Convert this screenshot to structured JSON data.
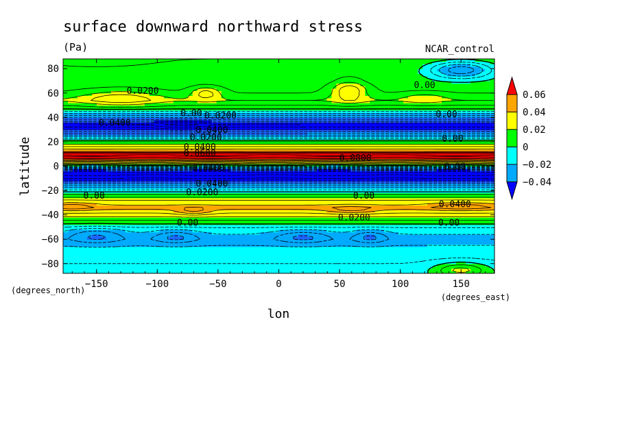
{
  "chart_data": {
    "type": "heatmap",
    "title": "surface downward northward stress",
    "units": "(Pa)",
    "dataset": "NCAR_control",
    "xlabel": "lon",
    "ylabel": "latitude",
    "xunits": "(degrees_east)",
    "yunits": "(degrees_north)",
    "xlim": [
      -177.5,
      177.5
    ],
    "ylim": [
      -88,
      88
    ],
    "x_ticks": [
      -150,
      -100,
      -50,
      0,
      50,
      100,
      150
    ],
    "y_ticks": [
      -80,
      -60,
      -40,
      -20,
      0,
      20,
      40,
      60,
      80
    ],
    "x_tick_labels": [
      "−150",
      "−100",
      "−50",
      "0",
      "50",
      "100",
      "150"
    ],
    "y_tick_labels": [
      "−80",
      "−60",
      "−40",
      "−20",
      "0",
      "20",
      "40",
      "60",
      "80"
    ],
    "colorbar": {
      "labels": [
        "0.06",
        "0.04",
        "0.02",
        "0",
        "−0.02",
        "−0.04"
      ],
      "colors": [
        "#ff0000",
        "#ffa500",
        "#ffff00",
        "#00ff00",
        "#00ffff",
        "#00aaff",
        "#0000ff"
      ]
    },
    "color_levels": [
      {
        "min": -999,
        "max": -0.06,
        "color": "#0000ff"
      },
      {
        "min": -0.06,
        "max": -0.04,
        "color": "#1e64ff"
      },
      {
        "min": -0.04,
        "max": -0.02,
        "color": "#00aaff"
      },
      {
        "min": -0.02,
        "max": 0.0,
        "color": "#00ffff"
      },
      {
        "min": 0.0,
        "max": 0.02,
        "color": "#00ff00"
      },
      {
        "min": 0.02,
        "max": 0.04,
        "color": "#ffff00"
      },
      {
        "min": 0.04,
        "max": 0.06,
        "color": "#ffa500"
      },
      {
        "min": 0.06,
        "max": 999,
        "color": "#ff0000"
      }
    ],
    "zonal_profile": [
      {
        "lat": -88,
        "v": -0.005
      },
      {
        "lat": -80,
        "v": -0.01
      },
      {
        "lat": -70,
        "v": -0.015
      },
      {
        "lat": -60,
        "v": -0.025
      },
      {
        "lat": -52,
        "v": -0.015
      },
      {
        "lat": -46,
        "v": 0.005
      },
      {
        "lat": -40,
        "v": 0.025
      },
      {
        "lat": -34,
        "v": 0.045
      },
      {
        "lat": -28,
        "v": 0.03
      },
      {
        "lat": -22,
        "v": 0.005
      },
      {
        "lat": -16,
        "v": -0.03
      },
      {
        "lat": -10,
        "v": -0.07
      },
      {
        "lat": -5,
        "v": -0.09
      },
      {
        "lat": 0,
        "v": -0.01
      },
      {
        "lat": 3,
        "v": 0.03
      },
      {
        "lat": 6,
        "v": 0.07
      },
      {
        "lat": 9,
        "v": 0.09
      },
      {
        "lat": 12,
        "v": 0.05
      },
      {
        "lat": 16,
        "v": 0.03
      },
      {
        "lat": 20,
        "v": 0.01
      },
      {
        "lat": 24,
        "v": -0.02
      },
      {
        "lat": 30,
        "v": -0.06
      },
      {
        "lat": 34,
        "v": -0.08
      },
      {
        "lat": 38,
        "v": -0.05
      },
      {
        "lat": 44,
        "v": -0.015
      },
      {
        "lat": 48,
        "v": 0.005
      },
      {
        "lat": 54,
        "v": 0.02
      },
      {
        "lat": 60,
        "v": 0.01
      },
      {
        "lat": 70,
        "v": 0.005
      },
      {
        "lat": 80,
        "v": 0.008
      },
      {
        "lat": 88,
        "v": 0.01
      }
    ],
    "anomalies": [
      {
        "lon": -130,
        "lat": 56,
        "wlon": 30,
        "wlat": 6,
        "amp": 0.022
      },
      {
        "lon": -60,
        "lat": 60,
        "wlon": 12,
        "wlat": 5,
        "amp": 0.025
      },
      {
        "lon": 58,
        "lat": 62,
        "wlon": 14,
        "wlat": 8,
        "amp": 0.03
      },
      {
        "lon": 120,
        "lat": 56,
        "wlon": 16,
        "wlat": 4,
        "amp": 0.012
      },
      {
        "lon": 150,
        "lat": 79,
        "wlon": 26,
        "wlat": 7,
        "amp": -0.045
      },
      {
        "lon": -80,
        "lat": 34,
        "wlon": 22,
        "wlat": 4,
        "amp": -0.015
      },
      {
        "lon": -70,
        "lat": -37,
        "wlon": 14,
        "wlat": 3,
        "amp": 0.018
      },
      {
        "lon": -170,
        "lat": -33,
        "wlon": 18,
        "wlat": 3,
        "amp": 0.015
      },
      {
        "lon": 60,
        "lat": -36,
        "wlon": 20,
        "wlat": 3,
        "amp": 0.015
      },
      {
        "lon": 150,
        "lat": -33,
        "wlon": 25,
        "wlat": 3,
        "amp": 0.015
      },
      {
        "lon": -150,
        "lat": -57,
        "wlon": 22,
        "wlat": 6,
        "amp": -0.02
      },
      {
        "lon": -85,
        "lat": -58,
        "wlon": 18,
        "wlat": 5,
        "amp": -0.02
      },
      {
        "lon": 20,
        "lat": -58,
        "wlon": 22,
        "wlat": 5,
        "amp": -0.02
      },
      {
        "lon": 75,
        "lat": -58,
        "wlon": 14,
        "wlat": 5,
        "amp": -0.02
      },
      {
        "lon": 150,
        "lat": -85,
        "wlon": 22,
        "wlat": 6,
        "amp": 0.03
      },
      {
        "lon": -150,
        "lat": 88,
        "wlon": 40,
        "wlat": 6,
        "amp": 0.005
      }
    ],
    "contour_labels": [
      {
        "text": "0.0200",
        "lon": -112,
        "lat": 62
      },
      {
        "text": "0.00",
        "lon": 120,
        "lat": 67
      },
      {
        "text": "0.00",
        "lon": -72,
        "lat": 44
      },
      {
        "text": "0.0200",
        "lon": -48,
        "lat": 42
      },
      {
        "text": "0.0400",
        "lon": -135,
        "lat": 36
      },
      {
        "text": "0.00",
        "lon": 138,
        "lat": 43
      },
      {
        "text": "0.0400",
        "lon": -55,
        "lat": 30
      },
      {
        "text": "0.0200",
        "lon": -60,
        "lat": 24
      },
      {
        "text": "0.00",
        "lon": 143,
        "lat": 23
      },
      {
        "text": "0.0400",
        "lon": -65,
        "lat": 16
      },
      {
        "text": "0.0600",
        "lon": -65,
        "lat": 11
      },
      {
        "text": "0.0800",
        "lon": 63,
        "lat": 7
      },
      {
        "text": "0.0400",
        "lon": -58,
        "lat": -1
      },
      {
        "text": "0.00",
        "lon": 145,
        "lat": 0
      },
      {
        "text": "0.0400",
        "lon": -55,
        "lat": -14
      },
      {
        "text": "0.0200",
        "lon": -63,
        "lat": -21
      },
      {
        "text": "0.00",
        "lon": -152,
        "lat": -24
      },
      {
        "text": "0.00",
        "lon": 70,
        "lat": -24
      },
      {
        "text": "0.0400",
        "lon": 145,
        "lat": -31
      },
      {
        "text": "0.0200",
        "lon": 62,
        "lat": -42
      },
      {
        "text": "0.00",
        "lon": -75,
        "lat": -46
      },
      {
        "text": "0.00",
        "lon": 140,
        "lat": -46
      }
    ]
  }
}
